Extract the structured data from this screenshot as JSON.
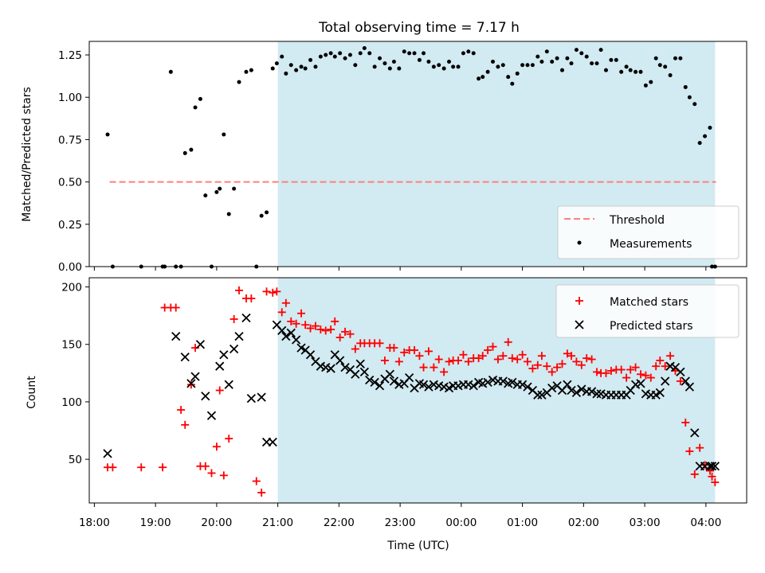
{
  "chart_data": {
    "type": "scatter",
    "title": "Total observing time = 7.17 h",
    "shaded_interval": {
      "start": "21:00",
      "end": "04:09",
      "color": "#add8e6"
    },
    "x_axis": {
      "label": "Time (UTC)",
      "ticks": [
        "18:00",
        "19:00",
        "20:00",
        "21:00",
        "22:00",
        "23:00",
        "00:00",
        "01:00",
        "02:00",
        "03:00",
        "04:00"
      ],
      "range": [
        "17:55",
        "04:40"
      ]
    },
    "panels": [
      {
        "ylabel": "Matched/Predicted stars",
        "ylim": [
          0,
          1.33
        ],
        "yticks": [
          "0.00",
          "0.25",
          "0.50",
          "0.75",
          "1.00",
          "1.25"
        ],
        "ytick_values": [
          0,
          0.25,
          0.5,
          0.75,
          1.0,
          1.25
        ],
        "legend": {
          "placement": "lower right",
          "entries": [
            "Threshold",
            "Measurements"
          ]
        },
        "threshold": {
          "name": "Threshold",
          "value": 0.5,
          "x_range": [
            "18:15",
            "04:10"
          ],
          "color": "#ff7f7f",
          "style": "dashed"
        },
        "measurements": {
          "name": "Measurements",
          "color": "#000000",
          "marker": "dot",
          "x": [
            "18:13",
            "18:18",
            "18:46",
            "19:07",
            "19:09",
            "19:15",
            "19:20",
            "19:25",
            "19:29",
            "19:35",
            "19:39",
            "19:44",
            "19:49",
            "19:55",
            "20:00",
            "20:03",
            "20:07",
            "20:12",
            "20:17",
            "20:22",
            "20:29",
            "20:34",
            "20:39",
            "20:44",
            "20:49",
            "20:55",
            "20:59",
            "21:04",
            "21:08",
            "21:13",
            "21:18",
            "21:23",
            "21:27",
            "21:32",
            "21:37",
            "21:42",
            "21:47",
            "21:52",
            "21:56",
            "22:01",
            "22:06",
            "22:11",
            "22:16",
            "22:21",
            "22:25",
            "22:30",
            "22:35",
            "22:40",
            "22:45",
            "22:50",
            "22:54",
            "22:59",
            "23:04",
            "23:09",
            "23:14",
            "23:19",
            "23:23",
            "23:28",
            "23:33",
            "23:38",
            "23:43",
            "23:48",
            "23:52",
            "23:57",
            "00:02",
            "00:07",
            "00:12",
            "00:17",
            "00:21",
            "00:26",
            "00:31",
            "00:36",
            "00:41",
            "00:46",
            "00:50",
            "00:55",
            "01:00",
            "01:05",
            "01:10",
            "01:15",
            "01:19",
            "01:24",
            "01:29",
            "01:34",
            "01:39",
            "01:44",
            "01:48",
            "01:53",
            "01:58",
            "02:03",
            "02:08",
            "02:13",
            "02:17",
            "02:22",
            "02:27",
            "02:32",
            "02:37",
            "02:42",
            "02:46",
            "02:51",
            "02:56",
            "03:01",
            "03:06",
            "03:11",
            "03:15",
            "03:20",
            "03:25",
            "03:30",
            "03:35",
            "03:40",
            "03:44",
            "03:49",
            "03:54",
            "03:59",
            "04:04",
            "04:06",
            "04:09"
          ],
          "y": [
            0.78,
            0,
            0,
            0,
            0,
            1.15,
            0,
            0,
            0.67,
            0.69,
            0.94,
            0.99,
            0.42,
            0,
            0.44,
            0.46,
            0.78,
            0.31,
            0.46,
            1.09,
            1.15,
            1.16,
            0,
            0.3,
            0.32,
            1.17,
            1.2,
            1.24,
            1.14,
            1.19,
            1.16,
            1.18,
            1.17,
            1.22,
            1.18,
            1.24,
            1.25,
            1.26,
            1.24,
            1.26,
            1.23,
            1.25,
            1.19,
            1.26,
            1.29,
            1.26,
            1.18,
            1.23,
            1.2,
            1.17,
            1.21,
            1.17,
            1.27,
            1.26,
            1.26,
            1.22,
            1.26,
            1.21,
            1.18,
            1.19,
            1.17,
            1.21,
            1.18,
            1.18,
            1.26,
            1.27,
            1.26,
            1.11,
            1.12,
            1.15,
            1.21,
            1.18,
            1.19,
            1.12,
            1.08,
            1.14,
            1.19,
            1.19,
            1.19,
            1.24,
            1.21,
            1.27,
            1.21,
            1.23,
            1.16,
            1.23,
            1.2,
            1.28,
            1.26,
            1.24,
            1.2,
            1.2,
            1.28,
            1.16,
            1.22,
            1.22,
            1.15,
            1.18,
            1.16,
            1.15,
            1.15,
            1.07,
            1.09,
            1.23,
            1.19,
            1.18,
            1.13,
            1.23,
            1.23,
            1.06,
            1.0,
            0.96,
            0.73,
            0.77,
            0.82,
            0,
            0
          ]
        }
      },
      {
        "ylabel": "Count",
        "ylim": [
          12,
          208
        ],
        "yticks": [
          "50",
          "100",
          "150",
          "200"
        ],
        "ytick_values": [
          50,
          100,
          150,
          200
        ],
        "legend": {
          "placement": "upper right",
          "entries": [
            "Matched stars",
            "Predicted stars"
          ]
        },
        "series": [
          {
            "name": "Matched stars",
            "color": "#ff0000",
            "marker": "plus",
            "x": [
              "18:13",
              "18:18",
              "18:46",
              "19:07",
              "19:09",
              "19:15",
              "19:20",
              "19:25",
              "19:29",
              "19:35",
              "19:39",
              "19:44",
              "19:49",
              "19:55",
              "20:00",
              "20:03",
              "20:07",
              "20:12",
              "20:17",
              "20:22",
              "20:29",
              "20:34",
              "20:39",
              "20:44",
              "20:49",
              "20:55",
              "20:59",
              "21:04",
              "21:08",
              "21:13",
              "21:18",
              "21:23",
              "21:27",
              "21:32",
              "21:37",
              "21:42",
              "21:47",
              "21:52",
              "21:56",
              "22:01",
              "22:06",
              "22:11",
              "22:16",
              "22:21",
              "22:25",
              "22:30",
              "22:35",
              "22:40",
              "22:45",
              "22:50",
              "22:54",
              "22:59",
              "23:04",
              "23:09",
              "23:14",
              "23:19",
              "23:23",
              "23:28",
              "23:33",
              "23:38",
              "23:43",
              "23:48",
              "23:52",
              "23:57",
              "00:02",
              "00:07",
              "00:12",
              "00:17",
              "00:21",
              "00:26",
              "00:31",
              "00:36",
              "00:41",
              "00:46",
              "00:50",
              "00:55",
              "01:00",
              "01:05",
              "01:10",
              "01:15",
              "01:19",
              "01:24",
              "01:29",
              "01:34",
              "01:39",
              "01:44",
              "01:48",
              "01:53",
              "01:58",
              "02:03",
              "02:08",
              "02:13",
              "02:17",
              "02:22",
              "02:27",
              "02:32",
              "02:37",
              "02:42",
              "02:46",
              "02:51",
              "02:56",
              "03:01",
              "03:06",
              "03:11",
              "03:15",
              "03:20",
              "03:25",
              "03:30",
              "03:35",
              "03:40",
              "03:44",
              "03:49",
              "03:54",
              "03:59",
              "04:04",
              "04:06",
              "04:09"
            ],
            "y": [
              43,
              43,
              43,
              43,
              182,
              182,
              182,
              93,
              80,
              115,
              147,
              44,
              44,
              38,
              61,
              110,
              36,
              68,
              172,
              197,
              190,
              190,
              31,
              21,
              196,
              195,
              196,
              178,
              186,
              170,
              168,
              177,
              167,
              164,
              166,
              163,
              162,
              163,
              170,
              156,
              161,
              159,
              146,
              151,
              151,
              151,
              151,
              151,
              136,
              147,
              147,
              135,
              143,
              145,
              145,
              140,
              130,
              144,
              130,
              137,
              126,
              135,
              136,
              136,
              141,
              135,
              138,
              138,
              140,
              145,
              148,
              137,
              140,
              152,
              138,
              137,
              141,
              135,
              129,
              132,
              140,
              131,
              126,
              130,
              133,
              142,
              140,
              135,
              132,
              138,
              137,
              126,
              125,
              125,
              127,
              128,
              128,
              121,
              128,
              130,
              124,
              123,
              121,
              131,
              136,
              131,
              140,
              127,
              118,
              82,
              57,
              37,
              60,
              45,
              40,
              35,
              30
            ]
          },
          {
            "name": "Predicted stars",
            "color": "#000000",
            "marker": "x",
            "x": [
              "18:13",
              "19:20",
              "19:29",
              "19:35",
              "19:39",
              "19:44",
              "19:49",
              "19:55",
              "20:03",
              "20:07",
              "20:12",
              "20:17",
              "20:22",
              "20:29",
              "20:34",
              "20:55",
              "20:59",
              "21:04",
              "21:08",
              "21:13",
              "21:18",
              "21:23",
              "21:27",
              "21:32",
              "21:37",
              "21:42",
              "21:47",
              "21:52",
              "21:56",
              "22:01",
              "22:06",
              "22:11",
              "22:16",
              "22:21",
              "22:25",
              "22:30",
              "22:35",
              "22:40",
              "22:45",
              "22:50",
              "22:54",
              "22:59",
              "23:04",
              "23:09",
              "23:14",
              "23:19",
              "23:23",
              "23:28",
              "23:33",
              "23:38",
              "23:43",
              "23:48",
              "23:52",
              "23:57",
              "00:02",
              "00:07",
              "00:12",
              "00:17",
              "00:21",
              "00:26",
              "00:31",
              "00:36",
              "00:41",
              "00:46",
              "00:50",
              "00:55",
              "01:00",
              "01:05",
              "01:10",
              "01:15",
              "01:19",
              "01:24",
              "01:29",
              "01:34",
              "01:39",
              "01:44",
              "01:48",
              "01:53",
              "01:58",
              "02:03",
              "02:08",
              "02:13",
              "02:17",
              "02:22",
              "02:27",
              "02:32",
              "02:37",
              "02:42",
              "02:46",
              "02:51",
              "02:56",
              "03:01",
              "03:06",
              "03:11",
              "03:15",
              "03:20",
              "03:25",
              "03:30",
              "03:35",
              "03:40",
              "03:44",
              "03:49",
              "03:54",
              "03:59",
              "04:04",
              "04:06",
              "04:09",
              "20:44",
              "20:49"
            ],
            "y": [
              55,
              157,
              139,
              116,
              122,
              150,
              105,
              88,
              131,
              141,
              115,
              146,
              157,
              173,
              103,
              65,
              167,
              162,
              157,
              160,
              154,
              147,
              145,
              141,
              135,
              131,
              130,
              129,
              141,
              136,
              130,
              128,
              124,
              133,
              126,
              119,
              117,
              114,
              120,
              124,
              118,
              115,
              116,
              121,
              112,
              116,
              115,
              113,
              115,
              114,
              113,
              112,
              114,
              114,
              115,
              115,
              114,
              117,
              116,
              117,
              119,
              118,
              118,
              116,
              117,
              115,
              115,
              113,
              110,
              106,
              106,
              108,
              112,
              114,
              110,
              115,
              110,
              108,
              111,
              109,
              109,
              107,
              107,
              106,
              106,
              106,
              106,
              106,
              110,
              115,
              116,
              107,
              106,
              106,
              108,
              118,
              131,
              130,
              126,
              118,
              113,
              73,
              44,
              44,
              44,
              44,
              44,
              104,
              65
            ]
          }
        ]
      }
    ]
  }
}
